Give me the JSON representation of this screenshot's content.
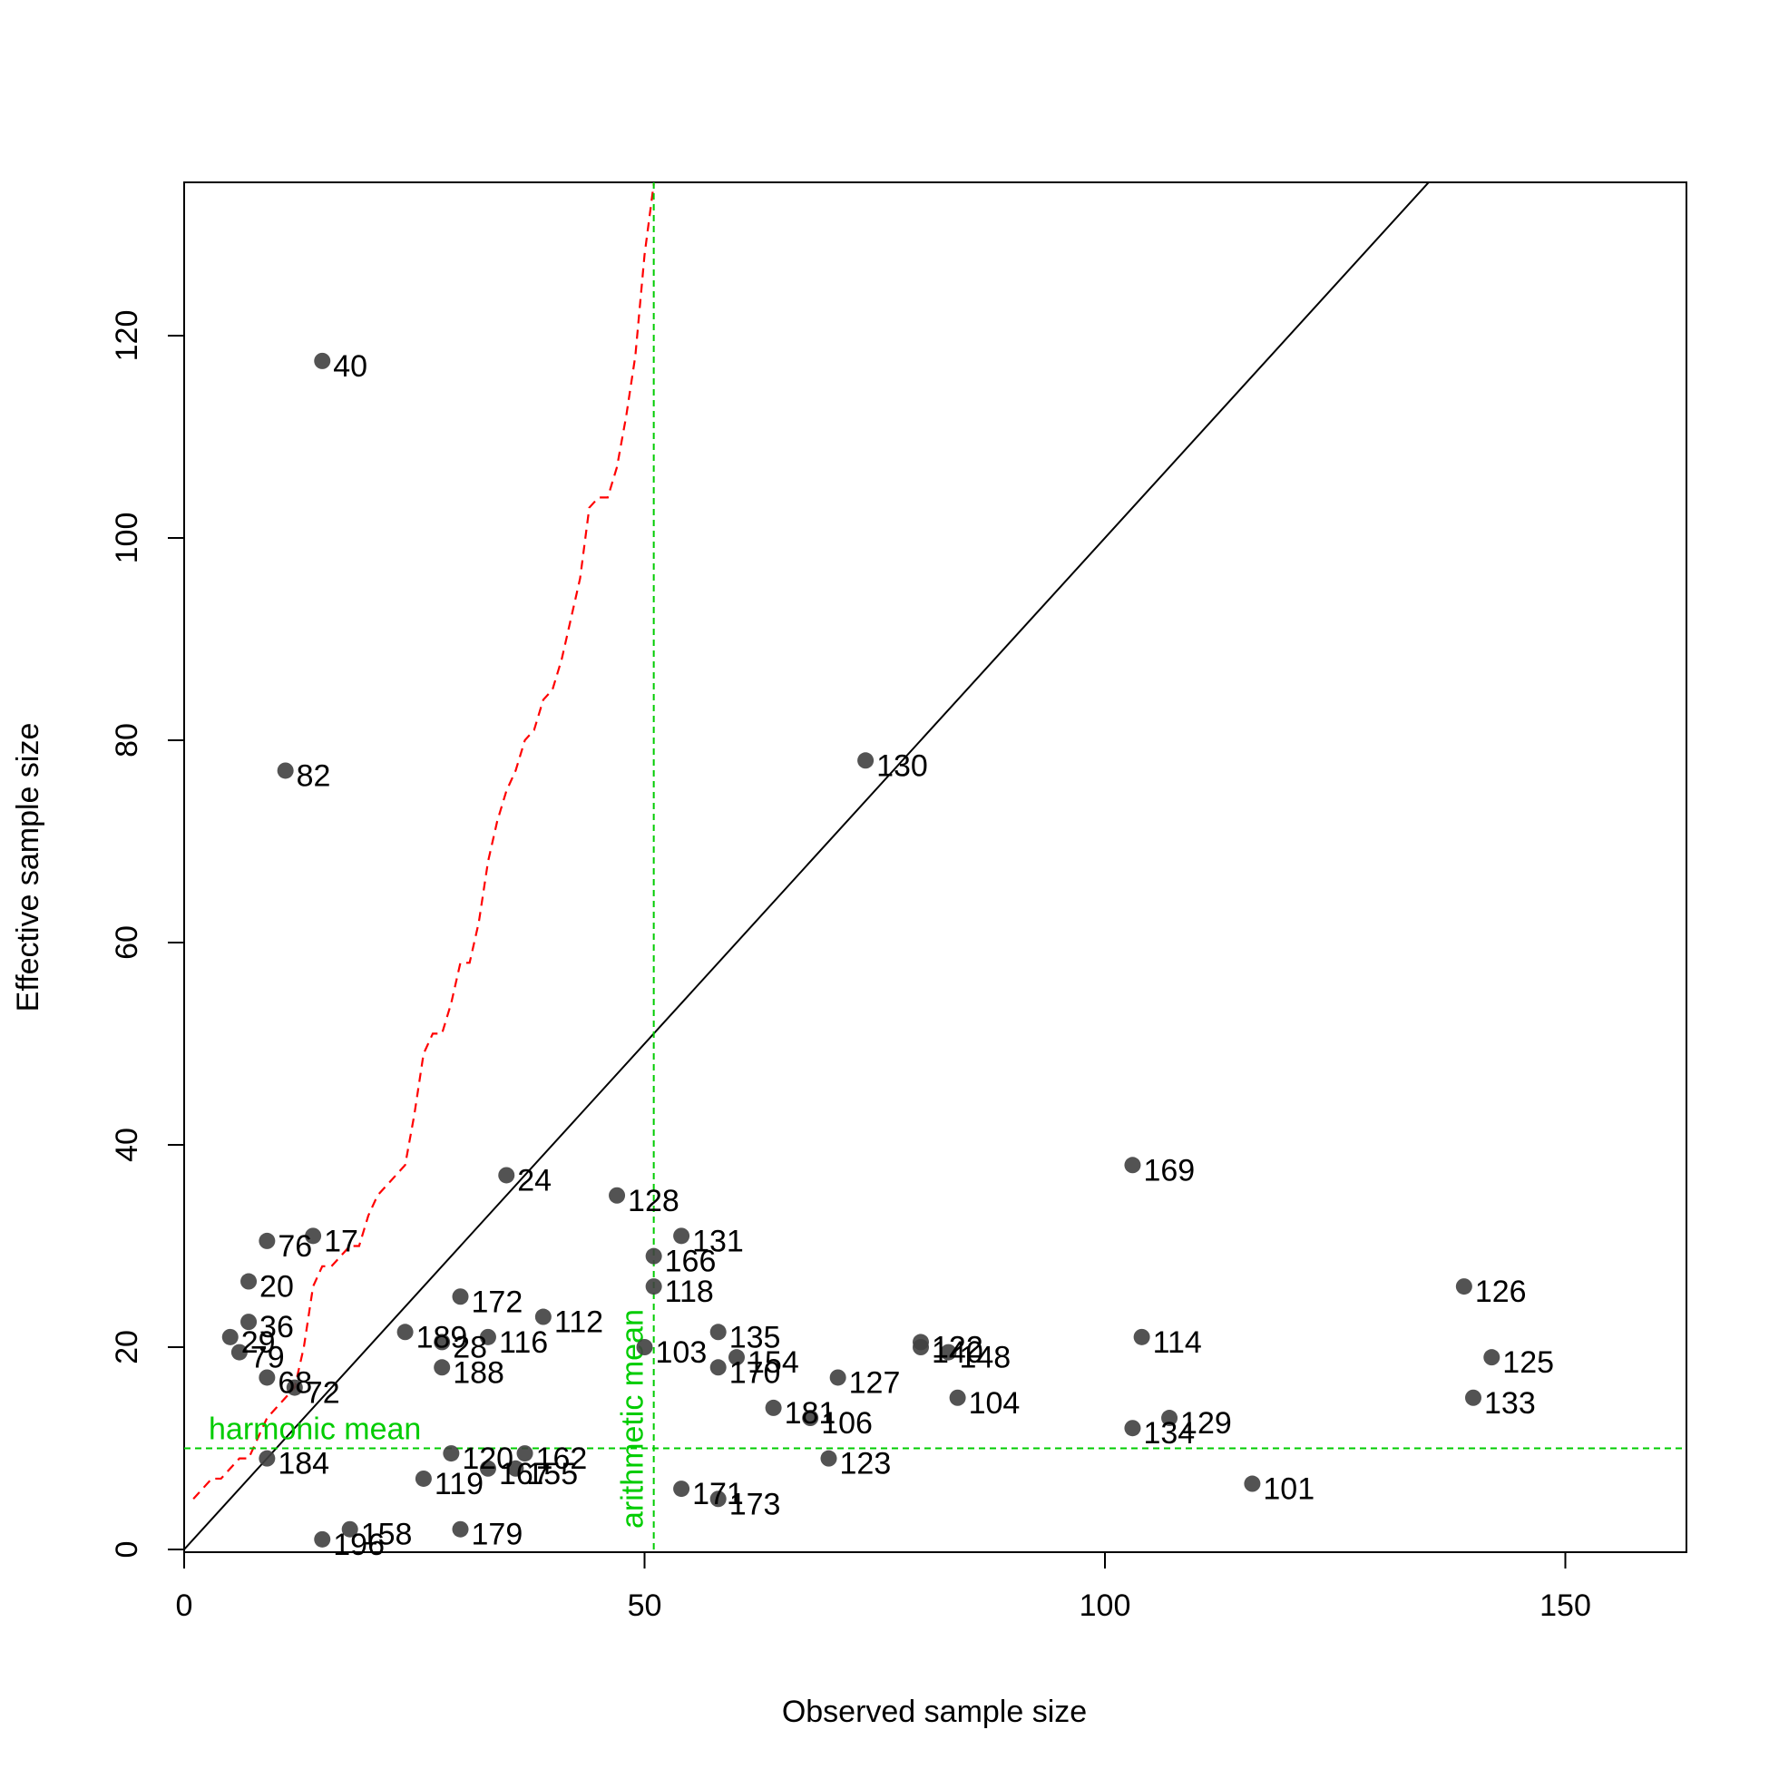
{
  "chart_data": {
    "type": "scatter",
    "title": "",
    "xlabel": "Observed sample size",
    "ylabel": "Effective sample size",
    "xlim": [
      0,
      163
    ],
    "ylim": [
      0,
      135
    ],
    "x_ticks": [
      0,
      50,
      100,
      150
    ],
    "y_ticks": [
      0,
      20,
      40,
      60,
      80,
      100,
      120
    ],
    "grid": false,
    "point_color": "#404040",
    "points": [
      {
        "label": "40",
        "x": 15,
        "y": 117.5
      },
      {
        "label": "82",
        "x": 11,
        "y": 77
      },
      {
        "label": "130",
        "x": 74,
        "y": 78
      },
      {
        "label": "24",
        "x": 35,
        "y": 37
      },
      {
        "label": "169",
        "x": 103,
        "y": 38
      },
      {
        "label": "128",
        "x": 47,
        "y": 35
      },
      {
        "label": "76",
        "x": 9,
        "y": 30.5
      },
      {
        "label": "17",
        "x": 14,
        "y": 31
      },
      {
        "label": "131",
        "x": 54,
        "y": 31
      },
      {
        "label": "166",
        "x": 51,
        "y": 29
      },
      {
        "label": "20",
        "x": 7,
        "y": 26.5
      },
      {
        "label": "118",
        "x": 51,
        "y": 26
      },
      {
        "label": "126",
        "x": 139,
        "y": 26
      },
      {
        "label": "172",
        "x": 30,
        "y": 25
      },
      {
        "label": "112",
        "x": 39,
        "y": 23
      },
      {
        "label": "36",
        "x": 7,
        "y": 22.5
      },
      {
        "label": "135",
        "x": 58,
        "y": 21.5
      },
      {
        "label": "189",
        "x": 24,
        "y": 21.5
      },
      {
        "label": "29",
        "x": 5,
        "y": 21
      },
      {
        "label": "28",
        "x": 28,
        "y": 20.5
      },
      {
        "label": "116",
        "x": 33,
        "y": 21
      },
      {
        "label": "114",
        "x": 104,
        "y": 21
      },
      {
        "label": "122",
        "x": 80,
        "y": 20.5
      },
      {
        "label": "140",
        "x": 80,
        "y": 20
      },
      {
        "label": "103",
        "x": 50,
        "y": 20
      },
      {
        "label": "148",
        "x": 83,
        "y": 19.5
      },
      {
        "label": "79",
        "x": 6,
        "y": 19.5
      },
      {
        "label": "154",
        "x": 60,
        "y": 19
      },
      {
        "label": "125",
        "x": 142,
        "y": 19
      },
      {
        "label": "170",
        "x": 58,
        "y": 18
      },
      {
        "label": "188",
        "x": 28,
        "y": 18
      },
      {
        "label": "68",
        "x": 9,
        "y": 17
      },
      {
        "label": "127",
        "x": 71,
        "y": 17
      },
      {
        "label": "72",
        "x": 12,
        "y": 16
      },
      {
        "label": "133",
        "x": 140,
        "y": 15
      },
      {
        "label": "104",
        "x": 84,
        "y": 15
      },
      {
        "label": "181",
        "x": 64,
        "y": 14
      },
      {
        "label": "106",
        "x": 68,
        "y": 13
      },
      {
        "label": "129",
        "x": 107,
        "y": 13
      },
      {
        "label": "134",
        "x": 103,
        "y": 12
      },
      {
        "label": "120",
        "x": 29,
        "y": 9.5
      },
      {
        "label": "162",
        "x": 37,
        "y": 9.5
      },
      {
        "label": "123",
        "x": 70,
        "y": 9
      },
      {
        "label": "184",
        "x": 9,
        "y": 9
      },
      {
        "label": "167",
        "x": 33,
        "y": 8
      },
      {
        "label": "155",
        "x": 36,
        "y": 8
      },
      {
        "label": "119",
        "x": 26,
        "y": 7
      },
      {
        "label": "101",
        "x": 116,
        "y": 6.5
      },
      {
        "label": "171",
        "x": 54,
        "y": 6
      },
      {
        "label": "173",
        "x": 58,
        "y": 5
      },
      {
        "label": "158",
        "x": 18,
        "y": 2
      },
      {
        "label": "179",
        "x": 30,
        "y": 2
      },
      {
        "label": "196",
        "x": 15,
        "y": 1
      }
    ],
    "reference_lines": {
      "identity": {
        "color": "#000000"
      },
      "harmonic_mean": {
        "label": "harmonic mean",
        "value": 10,
        "color": "#00cc00"
      },
      "arithmetic_mean": {
        "label": "arithmetic mean",
        "value": 51,
        "color": "#00cc00"
      },
      "cumulative_curve": {
        "color": "#ff0000",
        "x": [
          1,
          3,
          4,
          5,
          6,
          7,
          8,
          9,
          10,
          11,
          12,
          13,
          14,
          15,
          16,
          17,
          18,
          19,
          20,
          21,
          22,
          23,
          24,
          25,
          26,
          27,
          28,
          29,
          30,
          31,
          32,
          33,
          34,
          35,
          36,
          37,
          38,
          39,
          40,
          41,
          42,
          43,
          44,
          45,
          46,
          47,
          48,
          49,
          50,
          51
        ],
        "y": [
          5,
          7,
          7,
          8,
          9,
          9,
          11,
          13,
          14,
          15,
          16,
          20,
          26,
          28,
          28,
          29,
          30,
          30,
          33,
          35,
          36,
          37,
          38,
          43,
          49,
          51,
          51,
          54,
          58,
          58,
          62,
          68,
          72,
          75,
          77,
          80,
          81,
          84,
          85,
          88,
          92,
          96,
          103,
          104,
          104,
          107,
          112,
          118,
          128,
          135
        ]
      }
    }
  }
}
